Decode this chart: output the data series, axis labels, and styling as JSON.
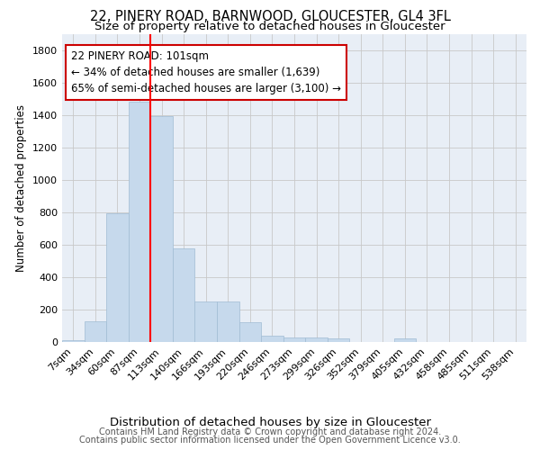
{
  "title_line1": "22, PINERY ROAD, BARNWOOD, GLOUCESTER, GL4 3FL",
  "title_line2": "Size of property relative to detached houses in Gloucester",
  "xlabel": "Distribution of detached houses by size in Gloucester",
  "ylabel": "Number of detached properties",
  "bar_color": "#c6d9ec",
  "bar_edge_color": "#a0bcd4",
  "bg_color": "#e8eef6",
  "grid_color": "#c8c8c8",
  "bins": [
    "7sqm",
    "34sqm",
    "60sqm",
    "87sqm",
    "113sqm",
    "140sqm",
    "166sqm",
    "193sqm",
    "220sqm",
    "246sqm",
    "273sqm",
    "299sqm",
    "326sqm",
    "352sqm",
    "379sqm",
    "405sqm",
    "432sqm",
    "458sqm",
    "485sqm",
    "511sqm",
    "538sqm"
  ],
  "values": [
    10,
    130,
    795,
    1480,
    1390,
    575,
    250,
    250,
    120,
    38,
    30,
    30,
    20,
    0,
    0,
    20,
    0,
    0,
    0,
    0,
    0
  ],
  "red_line_x": 3.5,
  "annotation_text": "22 PINERY ROAD: 101sqm\n← 34% of detached houses are smaller (1,639)\n65% of semi-detached houses are larger (3,100) →",
  "annotation_box_color": "#ffffff",
  "annotation_box_edge": "#cc0000",
  "ylim": [
    0,
    1900
  ],
  "yticks": [
    0,
    200,
    400,
    600,
    800,
    1000,
    1200,
    1400,
    1600,
    1800
  ],
  "footer_line1": "Contains HM Land Registry data © Crown copyright and database right 2024.",
  "footer_line2": "Contains public sector information licensed under the Open Government Licence v3.0.",
  "title_fontsize": 10.5,
  "subtitle_fontsize": 9.5,
  "ylabel_fontsize": 8.5,
  "xlabel_fontsize": 9.5,
  "tick_fontsize": 8,
  "annotation_fontsize": 8.5,
  "footer_fontsize": 7
}
